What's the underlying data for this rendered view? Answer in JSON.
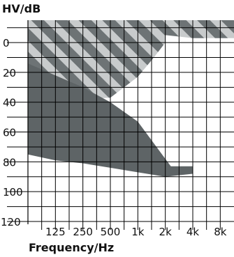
{
  "chart_data": {
    "type": "area",
    "ylabel": "HV/dB",
    "xlabel": "Frequency/Hz",
    "x_scale": "log",
    "y_reversed": true,
    "xlim": [
      62.5,
      11314
    ],
    "ylim": [
      -15,
      120
    ],
    "x_ticks": [
      {
        "value": 125,
        "label": "125"
      },
      {
        "value": 250,
        "label": "250"
      },
      {
        "value": 500,
        "label": "500"
      },
      {
        "value": 1000,
        "label": "1k"
      },
      {
        "value": 2000,
        "label": "2k"
      },
      {
        "value": 4000,
        "label": "4k"
      },
      {
        "value": 8000,
        "label": "8k"
      }
    ],
    "y_ticks": [
      {
        "value": 0,
        "label": "0"
      },
      {
        "value": 20,
        "label": "20"
      },
      {
        "value": 40,
        "label": "40"
      },
      {
        "value": 60,
        "label": "60"
      },
      {
        "value": 80,
        "label": "80"
      },
      {
        "value": 100,
        "label": "100"
      },
      {
        "value": 120,
        "label": "120"
      }
    ],
    "grid": true,
    "colors": {
      "grid": "#000000",
      "dark_region": "#5e6466",
      "stripe_dark": "#6d7375",
      "stripe_light": "#c8cbcc",
      "background": "#ffffff"
    },
    "regions": [
      {
        "style": "striped",
        "boundary": [
          {
            "x": 62.5,
            "y": -15
          },
          {
            "x": 11314,
            "y": -15
          },
          {
            "x": 11314,
            "y": -3
          },
          {
            "x": 4000,
            "y": -3
          },
          {
            "x": 2000,
            "y": -5
          },
          {
            "x": 2000,
            "y": 0
          },
          {
            "x": 1500,
            "y": 10
          },
          {
            "x": 1000,
            "y": 23
          },
          {
            "x": 500,
            "y": 37
          },
          {
            "x": 250,
            "y": 38
          },
          {
            "x": 62.5,
            "y": 38
          }
        ]
      },
      {
        "style": "solid",
        "boundary": [
          {
            "x": 62.5,
            "y": 14
          },
          {
            "x": 125,
            "y": 22
          },
          {
            "x": 250,
            "y": 30
          },
          {
            "x": 500,
            "y": 40
          },
          {
            "x": 1000,
            "y": 53
          },
          {
            "x": 2000,
            "y": 78
          },
          {
            "x": 2300,
            "y": 83
          },
          {
            "x": 4000,
            "y": 83
          },
          {
            "x": 4000,
            "y": 88
          },
          {
            "x": 2000,
            "y": 90
          },
          {
            "x": 1000,
            "y": 87
          },
          {
            "x": 500,
            "y": 84
          },
          {
            "x": 250,
            "y": 81
          },
          {
            "x": 125,
            "y": 79
          },
          {
            "x": 62.5,
            "y": 75
          }
        ]
      }
    ]
  }
}
